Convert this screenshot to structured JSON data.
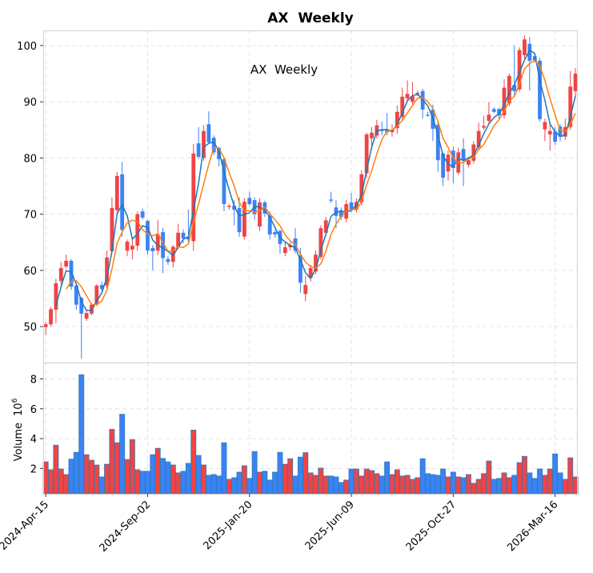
{
  "chart_data": {
    "type": "candlestick",
    "title": "AX  Weekly",
    "annotation": "AX  Weekly",
    "colors": {
      "up": "#ef4444",
      "down": "#3b82f6",
      "ma_short": "#1f77b4",
      "ma_long": "#ff7f0e",
      "volume_edge": "#2c7bb6",
      "grid": "#e3e3e3"
    },
    "ma_windows": [
      3,
      5
    ],
    "price_axis": {
      "ylim": [
        43.6,
        102.7
      ],
      "ticks": [
        50,
        60,
        70,
        80,
        90,
        100
      ]
    },
    "volume_axis": {
      "ylabel": "Volume",
      "ylabel_exp": "10",
      "ylabel_pow": "6",
      "ylim": [
        0.3,
        9.1
      ],
      "ticks": [
        2,
        4,
        6,
        8
      ]
    },
    "xlim": [
      -0.5,
      104.3
    ],
    "x_ticks": [
      {
        "index": 0,
        "label": "2024-Apr-15"
      },
      {
        "index": 20,
        "label": "2024-Sep-02"
      },
      {
        "index": 40,
        "label": "2025-Jan-20"
      },
      {
        "index": 60,
        "label": "2025-Jun-09"
      },
      {
        "index": 80,
        "label": "2025-Oct-27"
      },
      {
        "index": 100,
        "label": "2026-Mar-16"
      }
    ],
    "ohlc": [
      [
        49.9,
        50.8,
        48.5,
        50.4
      ],
      [
        50.4,
        53.5,
        50.0,
        53.1
      ],
      [
        53.0,
        58.5,
        50.6,
        57.7
      ],
      [
        58.1,
        61.5,
        57.5,
        60.4
      ],
      [
        60.7,
        62.8,
        60.3,
        61.7
      ],
      [
        61.7,
        62.0,
        56.5,
        57.1
      ],
      [
        57.3,
        57.6,
        53.0,
        53.9
      ],
      [
        55.1,
        55.3,
        44.3,
        52.3
      ],
      [
        51.4,
        52.8,
        51.0,
        52.4
      ],
      [
        52.3,
        54.2,
        52.0,
        53.9
      ],
      [
        53.9,
        57.5,
        53.6,
        57.3
      ],
      [
        57.4,
        58.0,
        56.3,
        56.7
      ],
      [
        57.3,
        63.5,
        56.8,
        62.3
      ],
      [
        63.4,
        73.0,
        63.0,
        71.1
      ],
      [
        70.7,
        77.5,
        70.3,
        76.8
      ],
      [
        77.1,
        79.3,
        66.0,
        67.2
      ],
      [
        63.5,
        65.5,
        62.5,
        65.1
      ],
      [
        63.7,
        65.5,
        62.0,
        64.4
      ],
      [
        64.4,
        70.5,
        63.5,
        70.0
      ],
      [
        70.5,
        71.0,
        69.0,
        69.4
      ],
      [
        68.8,
        69.0,
        62.8,
        63.5
      ],
      [
        64.0,
        64.5,
        60.0,
        63.4
      ],
      [
        63.5,
        69.0,
        62.7,
        66.4
      ],
      [
        66.8,
        67.6,
        59.5,
        62.2
      ],
      [
        62.0,
        62.5,
        61.0,
        61.5
      ],
      [
        61.5,
        64.5,
        60.5,
        64.2
      ],
      [
        64.1,
        68.3,
        63.8,
        66.7
      ],
      [
        66.7,
        67.3,
        64.8,
        65.7
      ],
      [
        66.0,
        70.8,
        65.0,
        65.5
      ],
      [
        65.2,
        82.5,
        63.5,
        80.8
      ],
      [
        82.6,
        85.5,
        79.8,
        80.2
      ],
      [
        80.0,
        85.8,
        79.5,
        84.8
      ],
      [
        86.0,
        88.3,
        82.5,
        82.8
      ],
      [
        83.6,
        84.0,
        80.5,
        81.0
      ],
      [
        81.8,
        82.0,
        78.5,
        79.8
      ],
      [
        79.8,
        80.0,
        70.5,
        71.8
      ],
      [
        71.3,
        71.8,
        70.8,
        71.5
      ],
      [
        71.5,
        72.5,
        68.0,
        70.8
      ],
      [
        71.1,
        73.0,
        66.0,
        66.8
      ],
      [
        66.0,
        72.8,
        65.5,
        72.2
      ],
      [
        72.9,
        74.0,
        71.5,
        71.8
      ],
      [
        72.5,
        73.0,
        69.0,
        70.0
      ],
      [
        67.8,
        72.8,
        67.0,
        72.1
      ],
      [
        72.1,
        72.4,
        69.5,
        70.1
      ],
      [
        69.7,
        70.5,
        65.5,
        66.4
      ],
      [
        66.8,
        67.2,
        65.8,
        66.4
      ],
      [
        67.0,
        67.3,
        63.0,
        64.7
      ],
      [
        63.1,
        65.0,
        62.5,
        64.1
      ],
      [
        64.1,
        65.0,
        63.5,
        64.5
      ],
      [
        65.7,
        67.5,
        63.0,
        63.5
      ],
      [
        62.7,
        64.0,
        56.0,
        57.8
      ],
      [
        55.8,
        59.0,
        54.5,
        57.4
      ],
      [
        58.7,
        61.0,
        58.0,
        60.4
      ],
      [
        59.8,
        63.5,
        59.3,
        62.8
      ],
      [
        62.4,
        68.0,
        62.0,
        67.5
      ],
      [
        66.7,
        69.5,
        66.3,
        68.9
      ],
      [
        72.6,
        74.0,
        72.0,
        72.4
      ],
      [
        71.2,
        72.5,
        67.5,
        69.7
      ],
      [
        70.7,
        71.2,
        69.0,
        69.5
      ],
      [
        69.2,
        72.5,
        68.5,
        71.8
      ],
      [
        72.1,
        73.8,
        70.3,
        70.8
      ],
      [
        70.8,
        72.8,
        70.3,
        72.2
      ],
      [
        72.1,
        77.8,
        71.5,
        77.1
      ],
      [
        77.3,
        84.5,
        76.5,
        84.2
      ],
      [
        83.5,
        85.5,
        82.0,
        84.5
      ],
      [
        84.0,
        86.8,
        83.5,
        85.8
      ],
      [
        85.0,
        86.5,
        84.0,
        84.8
      ],
      [
        85.1,
        88.0,
        84.0,
        84.6
      ],
      [
        84.6,
        86.0,
        83.8,
        85.0
      ],
      [
        85.3,
        89.3,
        84.3,
        88.2
      ],
      [
        87.3,
        92.5,
        86.8,
        90.9
      ],
      [
        90.6,
        93.8,
        90.0,
        91.4
      ],
      [
        90.0,
        93.5,
        89.5,
        91.0
      ],
      [
        91.4,
        92.0,
        91.0,
        91.6
      ],
      [
        91.9,
        92.3,
        87.0,
        88.6
      ],
      [
        87.7,
        88.2,
        87.3,
        87.6
      ],
      [
        88.6,
        89.5,
        83.0,
        85.2
      ],
      [
        85.9,
        86.5,
        77.5,
        79.6
      ],
      [
        80.8,
        81.0,
        75.0,
        76.5
      ],
      [
        77.6,
        81.3,
        76.0,
        80.6
      ],
      [
        81.3,
        82.0,
        75.5,
        78.2
      ],
      [
        77.4,
        81.8,
        77.0,
        81.0
      ],
      [
        81.6,
        83.5,
        75.0,
        79.5
      ],
      [
        78.8,
        80.0,
        78.3,
        79.6
      ],
      [
        79.5,
        83.0,
        79.0,
        82.4
      ],
      [
        81.9,
        86.3,
        81.5,
        84.8
      ],
      [
        85.4,
        87.5,
        85.0,
        85.7
      ],
      [
        86.6,
        90.0,
        86.0,
        87.7
      ],
      [
        88.7,
        89.0,
        88.0,
        88.2
      ],
      [
        88.7,
        89.0,
        87.0,
        87.6
      ],
      [
        87.6,
        94.0,
        87.0,
        92.5
      ],
      [
        89.7,
        95.0,
        89.2,
        94.6
      ],
      [
        93.0,
        100.0,
        91.0,
        91.9
      ],
      [
        92.2,
        99.7,
        91.8,
        99.2
      ],
      [
        98.3,
        101.8,
        97.5,
        101.1
      ],
      [
        100.3,
        101.5,
        92.0,
        97.3
      ],
      [
        98.1,
        98.6,
        97.0,
        97.4
      ],
      [
        97.3,
        97.8,
        86.5,
        86.9
      ],
      [
        85.1,
        87.0,
        83.0,
        86.4
      ],
      [
        84.2,
        86.0,
        81.3,
        84.8
      ],
      [
        84.7,
        85.5,
        82.3,
        82.9
      ],
      [
        85.6,
        86.0,
        83.0,
        83.8
      ],
      [
        83.8,
        87.0,
        83.2,
        85.5
      ],
      [
        85.5,
        95.5,
        85.0,
        92.7
      ],
      [
        91.9,
        96.0,
        91.0,
        95.0
      ]
    ],
    "volume": [
      2.44,
      1.91,
      3.56,
      1.96,
      1.59,
      2.62,
      3.08,
      8.28,
      2.92,
      2.55,
      2.23,
      1.43,
      2.28,
      4.62,
      3.72,
      5.63,
      2.6,
      3.93,
      1.91,
      1.81,
      1.81,
      2.92,
      3.35,
      2.67,
      2.44,
      2.23,
      1.7,
      1.81,
      2.34,
      4.57,
      2.87,
      2.23,
      1.54,
      1.59,
      1.49,
      3.72,
      1.27,
      1.38,
      1.75,
      2.18,
      1.33,
      3.13,
      1.75,
      1.81,
      1.22,
      1.75,
      3.08,
      2.28,
      2.65,
      1.49,
      2.76,
      3.06,
      1.7,
      1.54,
      2.02,
      1.49,
      1.49,
      1.43,
      1.06,
      1.22,
      1.96,
      1.96,
      1.49,
      1.96,
      1.86,
      1.65,
      1.49,
      2.44,
      1.59,
      1.91,
      1.49,
      1.54,
      1.27,
      1.38,
      2.65,
      1.65,
      1.59,
      1.54,
      1.96,
      1.43,
      1.75,
      1.43,
      1.38,
      1.59,
      1.0,
      1.27,
      1.65,
      2.5,
      1.27,
      1.33,
      1.7,
      1.38,
      1.54,
      2.39,
      2.81,
      1.7,
      1.33,
      1.96,
      1.54,
      1.96,
      2.97,
      1.7,
      1.27,
      2.71,
      1.43
    ]
  }
}
